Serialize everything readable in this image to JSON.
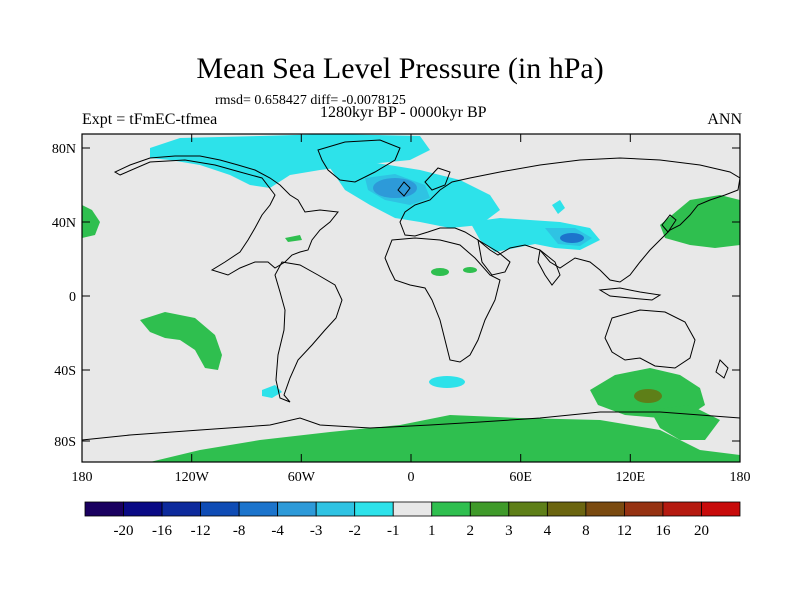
{
  "title": "Mean Sea Level Pressure (in hPa)",
  "stats": "rmsd= 0.658427 diff= -0.0078125",
  "period": "1280kyr BP - 0000kyr BP",
  "experiment": "Expt = tFmEC-tfmea",
  "season": "ANN",
  "axes": {
    "y_ticks": [
      "80N",
      "40N",
      "0",
      "40S",
      "80S"
    ],
    "x_ticks": [
      "180",
      "120W",
      "60W",
      "0",
      "60E",
      "120E",
      "180"
    ]
  },
  "legend": {
    "colors": [
      "#1a0060",
      "#0a0a85",
      "#0d2a9c",
      "#0f4cb5",
      "#1c74cc",
      "#2d9ad9",
      "#2fc3e3",
      "#2de2ea",
      "#e8e8e8",
      "#2fbf4f",
      "#3f9a2a",
      "#5e7f18",
      "#6b6510",
      "#7a4a10",
      "#963212",
      "#b51a10",
      "#c80b0b"
    ],
    "labels": [
      "-20",
      "-16",
      "-12",
      "-8",
      "-4",
      "-3",
      "-2",
      "-1",
      "1",
      "2",
      "3",
      "4",
      "8",
      "12",
      "16",
      "20"
    ]
  }
}
